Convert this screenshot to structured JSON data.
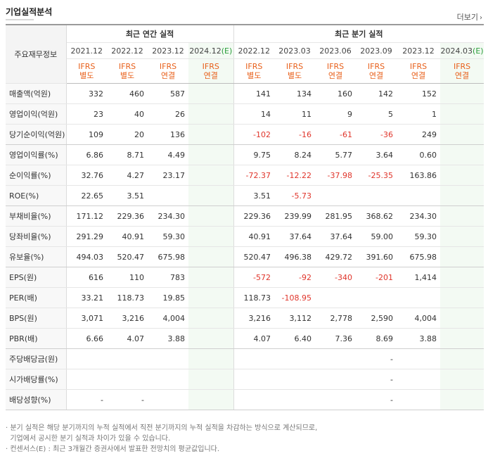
{
  "title": "기업실적분석",
  "more_label": "더보기",
  "header": {
    "row_label": "주요재무정보",
    "annual_group": "최근 연간 실적",
    "quarter_group": "최근 분기 실적",
    "annual": [
      {
        "year": "2021.12",
        "basis": [
          "IFRS",
          "별도"
        ],
        "est": false
      },
      {
        "year": "2022.12",
        "basis": [
          "IFRS",
          "별도"
        ],
        "est": false
      },
      {
        "year": "2023.12",
        "basis": [
          "IFRS",
          "연결"
        ],
        "est": false
      },
      {
        "year": "2024.12",
        "est_mark": "(E)",
        "basis": [
          "IFRS",
          "연결"
        ],
        "est": true
      }
    ],
    "quarter": [
      {
        "year": "2022.12",
        "basis": [
          "IFRS",
          "별도"
        ],
        "est": false
      },
      {
        "year": "2023.03",
        "basis": [
          "IFRS",
          "별도"
        ],
        "est": false
      },
      {
        "year": "2023.06",
        "basis": [
          "IFRS",
          "연결"
        ],
        "est": false
      },
      {
        "year": "2023.09",
        "basis": [
          "IFRS",
          "연결"
        ],
        "est": false
      },
      {
        "year": "2023.12",
        "basis": [
          "IFRS",
          "연결"
        ],
        "est": false
      },
      {
        "year": "2024.03",
        "est_mark": "(E)",
        "basis": [
          "IFRS",
          "연결"
        ],
        "est": true
      }
    ]
  },
  "rows": [
    {
      "label": "매출액(억원)",
      "annual": [
        "332",
        "460",
        "587",
        ""
      ],
      "quarter": [
        "141",
        "134",
        "160",
        "142",
        "152",
        ""
      ],
      "group_end": false
    },
    {
      "label": "영업이익(억원)",
      "annual": [
        "23",
        "40",
        "26",
        ""
      ],
      "quarter": [
        "14",
        "11",
        "9",
        "5",
        "1",
        ""
      ],
      "group_end": false
    },
    {
      "label": "당기순이익(억원)",
      "annual": [
        "109",
        "20",
        "136",
        ""
      ],
      "quarter": [
        "-102",
        "-16",
        "-61",
        "-36",
        "249",
        ""
      ],
      "group_end": true
    },
    {
      "label": "영업이익률(%)",
      "annual": [
        "6.86",
        "8.71",
        "4.49",
        ""
      ],
      "quarter": [
        "9.75",
        "8.24",
        "5.77",
        "3.64",
        "0.60",
        ""
      ],
      "group_end": false
    },
    {
      "label": "순이익률(%)",
      "annual": [
        "32.76",
        "4.27",
        "23.17",
        ""
      ],
      "quarter": [
        "-72.37",
        "-12.22",
        "-37.98",
        "-25.35",
        "163.86",
        ""
      ],
      "group_end": false
    },
    {
      "label": "ROE(%)",
      "annual": [
        "22.65",
        "3.51",
        "",
        ""
      ],
      "quarter": [
        "3.51",
        "-5.73",
        "",
        "",
        "",
        ""
      ],
      "group_end": true
    },
    {
      "label": "부채비율(%)",
      "annual": [
        "171.12",
        "229.36",
        "234.30",
        ""
      ],
      "quarter": [
        "229.36",
        "239.99",
        "281.95",
        "368.62",
        "234.30",
        ""
      ],
      "group_end": false
    },
    {
      "label": "당좌비율(%)",
      "annual": [
        "291.29",
        "40.91",
        "59.30",
        ""
      ],
      "quarter": [
        "40.91",
        "37.64",
        "37.64",
        "59.00",
        "59.30",
        ""
      ],
      "group_end": false
    },
    {
      "label": "유보율(%)",
      "annual": [
        "494.03",
        "520.47",
        "675.98",
        ""
      ],
      "quarter": [
        "520.47",
        "496.38",
        "429.72",
        "391.60",
        "675.98",
        ""
      ],
      "group_end": true
    },
    {
      "label": "EPS(원)",
      "annual": [
        "616",
        "110",
        "783",
        ""
      ],
      "quarter": [
        "-572",
        "-92",
        "-340",
        "-201",
        "1,414",
        ""
      ],
      "group_end": false
    },
    {
      "label": "PER(배)",
      "annual": [
        "33.21",
        "118.73",
        "19.85",
        ""
      ],
      "quarter": [
        "118.73",
        "-108.95",
        "",
        "",
        "",
        ""
      ],
      "group_end": false
    },
    {
      "label": "BPS(원)",
      "annual": [
        "3,071",
        "3,216",
        "4,004",
        ""
      ],
      "quarter": [
        "3,216",
        "3,112",
        "2,778",
        "2,590",
        "4,004",
        ""
      ],
      "group_end": false
    },
    {
      "label": "PBR(배)",
      "annual": [
        "6.66",
        "4.07",
        "3.88",
        ""
      ],
      "quarter": [
        "4.07",
        "6.40",
        "7.36",
        "8.69",
        "3.88",
        ""
      ],
      "group_end": true
    },
    {
      "label": "주당배당금(원)",
      "annual": [
        "",
        "",
        "",
        ""
      ],
      "quarter": [
        "",
        "",
        "",
        "-",
        "",
        ""
      ],
      "group_end": false
    },
    {
      "label": "시가배당률(%)",
      "annual": [
        "",
        "",
        "",
        ""
      ],
      "quarter": [
        "",
        "",
        "",
        "-",
        "",
        ""
      ],
      "group_end": false
    },
    {
      "label": "배당성향(%)",
      "annual": [
        "-",
        "-",
        "",
        ""
      ],
      "quarter": [
        "",
        "",
        "",
        "-",
        "",
        ""
      ],
      "group_end": true
    }
  ],
  "notes": [
    "· 분기 실적은 해당 분기까지의 누적 실적에서 직전 분기까지의 누적 실적을 차감하는 방식으로 계산되므로,",
    "  기업에서 공시한 분기 실적과 차이가 있을 수 있습니다.",
    "· 컨센서스(E) : 최근 3개월간 증권사에서 발표한 전망치의 평균값입니다."
  ],
  "colors": {
    "ifrs": "#e8601b",
    "negative": "#e0352b",
    "estimate_bg": "#f3faf3",
    "estimate_mark": "#2a9d3a"
  }
}
